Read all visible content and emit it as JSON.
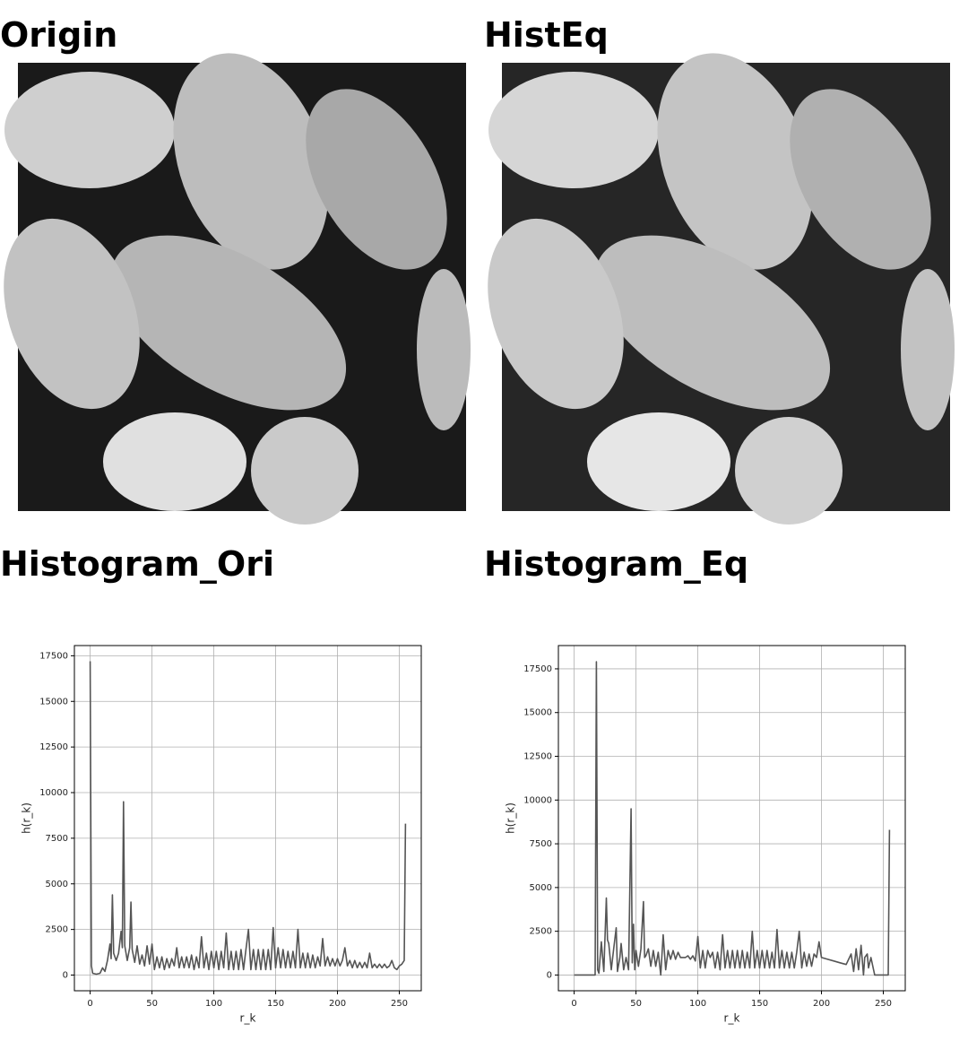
{
  "images": [
    {
      "title": "Origin"
    },
    {
      "title": "HistEq"
    }
  ],
  "chart_data": [
    {
      "type": "line",
      "title": "Histogram_Ori",
      "xlabel": "r_k",
      "ylabel": "h(r_k)",
      "color": "#555555",
      "grid": true,
      "xlim": [
        -12.75,
        267.75
      ],
      "ylim": [
        -860,
        18060
      ],
      "xticks": [
        0,
        50,
        100,
        150,
        200,
        250
      ],
      "yticks": [
        0,
        2500,
        5000,
        7500,
        10000,
        12500,
        15000,
        17500
      ],
      "x": [
        0,
        1,
        2,
        5,
        8,
        10,
        12,
        14,
        16,
        17,
        18,
        19,
        21,
        23,
        25,
        26,
        27,
        28,
        30,
        32,
        33,
        34,
        36,
        38,
        40,
        42,
        44,
        46,
        48,
        50,
        52,
        54,
        56,
        58,
        60,
        62,
        64,
        66,
        68,
        70,
        72,
        74,
        76,
        78,
        80,
        82,
        84,
        86,
        88,
        90,
        92,
        94,
        96,
        98,
        100,
        102,
        104,
        106,
        108,
        110,
        112,
        114,
        116,
        118,
        120,
        122,
        124,
        126,
        128,
        130,
        132,
        134,
        136,
        138,
        140,
        142,
        144,
        146,
        148,
        150,
        152,
        154,
        156,
        158,
        160,
        162,
        164,
        166,
        168,
        170,
        172,
        174,
        176,
        178,
        180,
        182,
        184,
        186,
        188,
        190,
        192,
        194,
        196,
        198,
        200,
        202,
        204,
        206,
        208,
        210,
        212,
        214,
        216,
        218,
        220,
        222,
        224,
        226,
        228,
        230,
        232,
        234,
        236,
        238,
        240,
        242,
        244,
        246,
        248,
        250,
        252,
        254,
        255
      ],
      "values": [
        17200,
        500,
        100,
        50,
        100,
        400,
        200,
        800,
        1700,
        900,
        4400,
        1200,
        800,
        1200,
        2400,
        1500,
        9500,
        1600,
        800,
        1500,
        4000,
        1400,
        700,
        1600,
        600,
        1100,
        500,
        1600,
        600,
        1700,
        300,
        1000,
        400,
        1000,
        300,
        900,
        400,
        900,
        500,
        1500,
        400,
        1000,
        400,
        1000,
        400,
        1100,
        300,
        1000,
        400,
        2100,
        400,
        1200,
        300,
        1300,
        400,
        1300,
        300,
        1300,
        400,
        2300,
        300,
        1300,
        300,
        1300,
        300,
        1400,
        300,
        1400,
        2500,
        300,
        1400,
        300,
        1400,
        300,
        1400,
        300,
        1400,
        300,
        2600,
        400,
        1500,
        400,
        1400,
        400,
        1300,
        400,
        1300,
        400,
        2500,
        400,
        1200,
        400,
        1200,
        400,
        1100,
        400,
        1000,
        500,
        2000,
        500,
        1000,
        500,
        900,
        500,
        900,
        500,
        800,
        1500,
        500,
        800,
        400,
        800,
        400,
        700,
        400,
        700,
        400,
        1200,
        400,
        600,
        400,
        600,
        400,
        600,
        400,
        500,
        800,
        400,
        300,
        500,
        600,
        800,
        8300
      ]
    },
    {
      "type": "line",
      "title": "Histogram_Eq",
      "xlabel": "r_k",
      "ylabel": "h(r_k)",
      "color": "#555555",
      "grid": true,
      "xlim": [
        -12.75,
        267.75
      ],
      "ylim": [
        -900,
        18830
      ],
      "xticks": [
        0,
        50,
        100,
        150,
        200,
        250
      ],
      "yticks": [
        0,
        2500,
        5000,
        7500,
        10000,
        12500,
        15000,
        17500
      ],
      "x": [
        0,
        17,
        18,
        19,
        20,
        22,
        24,
        26,
        27,
        28,
        30,
        32,
        34,
        35,
        37,
        38,
        40,
        42,
        44,
        46,
        47,
        48,
        49,
        50,
        52,
        54,
        56,
        57,
        58,
        60,
        62,
        64,
        66,
        68,
        70,
        72,
        74,
        76,
        78,
        80,
        82,
        84,
        86,
        88,
        90,
        92,
        94,
        96,
        98,
        100,
        102,
        104,
        106,
        108,
        110,
        112,
        114,
        116,
        118,
        120,
        122,
        124,
        126,
        128,
        130,
        132,
        134,
        136,
        138,
        140,
        142,
        144,
        146,
        148,
        150,
        152,
        154,
        156,
        158,
        160,
        162,
        164,
        166,
        168,
        170,
        172,
        174,
        176,
        178,
        180,
        182,
        184,
        186,
        188,
        190,
        192,
        194,
        196,
        198,
        200,
        205,
        210,
        215,
        220,
        224,
        226,
        228,
        230,
        232,
        234,
        235,
        237,
        238,
        240,
        243,
        254,
        255
      ],
      "values": [
        0,
        0,
        17900,
        300,
        100,
        1900,
        200,
        4400,
        2000,
        1800,
        300,
        1500,
        2700,
        200,
        1000,
        1800,
        300,
        1000,
        300,
        9500,
        700,
        2900,
        300,
        1400,
        500,
        1500,
        4200,
        1000,
        1100,
        1500,
        500,
        1400,
        500,
        1300,
        0,
        2300,
        300,
        1400,
        900,
        1400,
        900,
        1300,
        1000,
        1000,
        1000,
        1100,
        900,
        1100,
        800,
        2200,
        400,
        1400,
        400,
        1400,
        1000,
        1300,
        400,
        1300,
        300,
        2300,
        400,
        1400,
        400,
        1400,
        400,
        1400,
        400,
        1400,
        400,
        1300,
        400,
        2500,
        400,
        1400,
        400,
        1400,
        400,
        1400,
        400,
        1300,
        400,
        2600,
        400,
        1400,
        400,
        1300,
        400,
        1300,
        400,
        1300,
        2500,
        400,
        1300,
        500,
        1200,
        500,
        1200,
        1000,
        1900,
        1000,
        900,
        800,
        700,
        600,
        1200,
        200,
        1500,
        300,
        1700,
        0,
        1000,
        1200,
        400,
        1000,
        0,
        0,
        8300
      ]
    }
  ]
}
